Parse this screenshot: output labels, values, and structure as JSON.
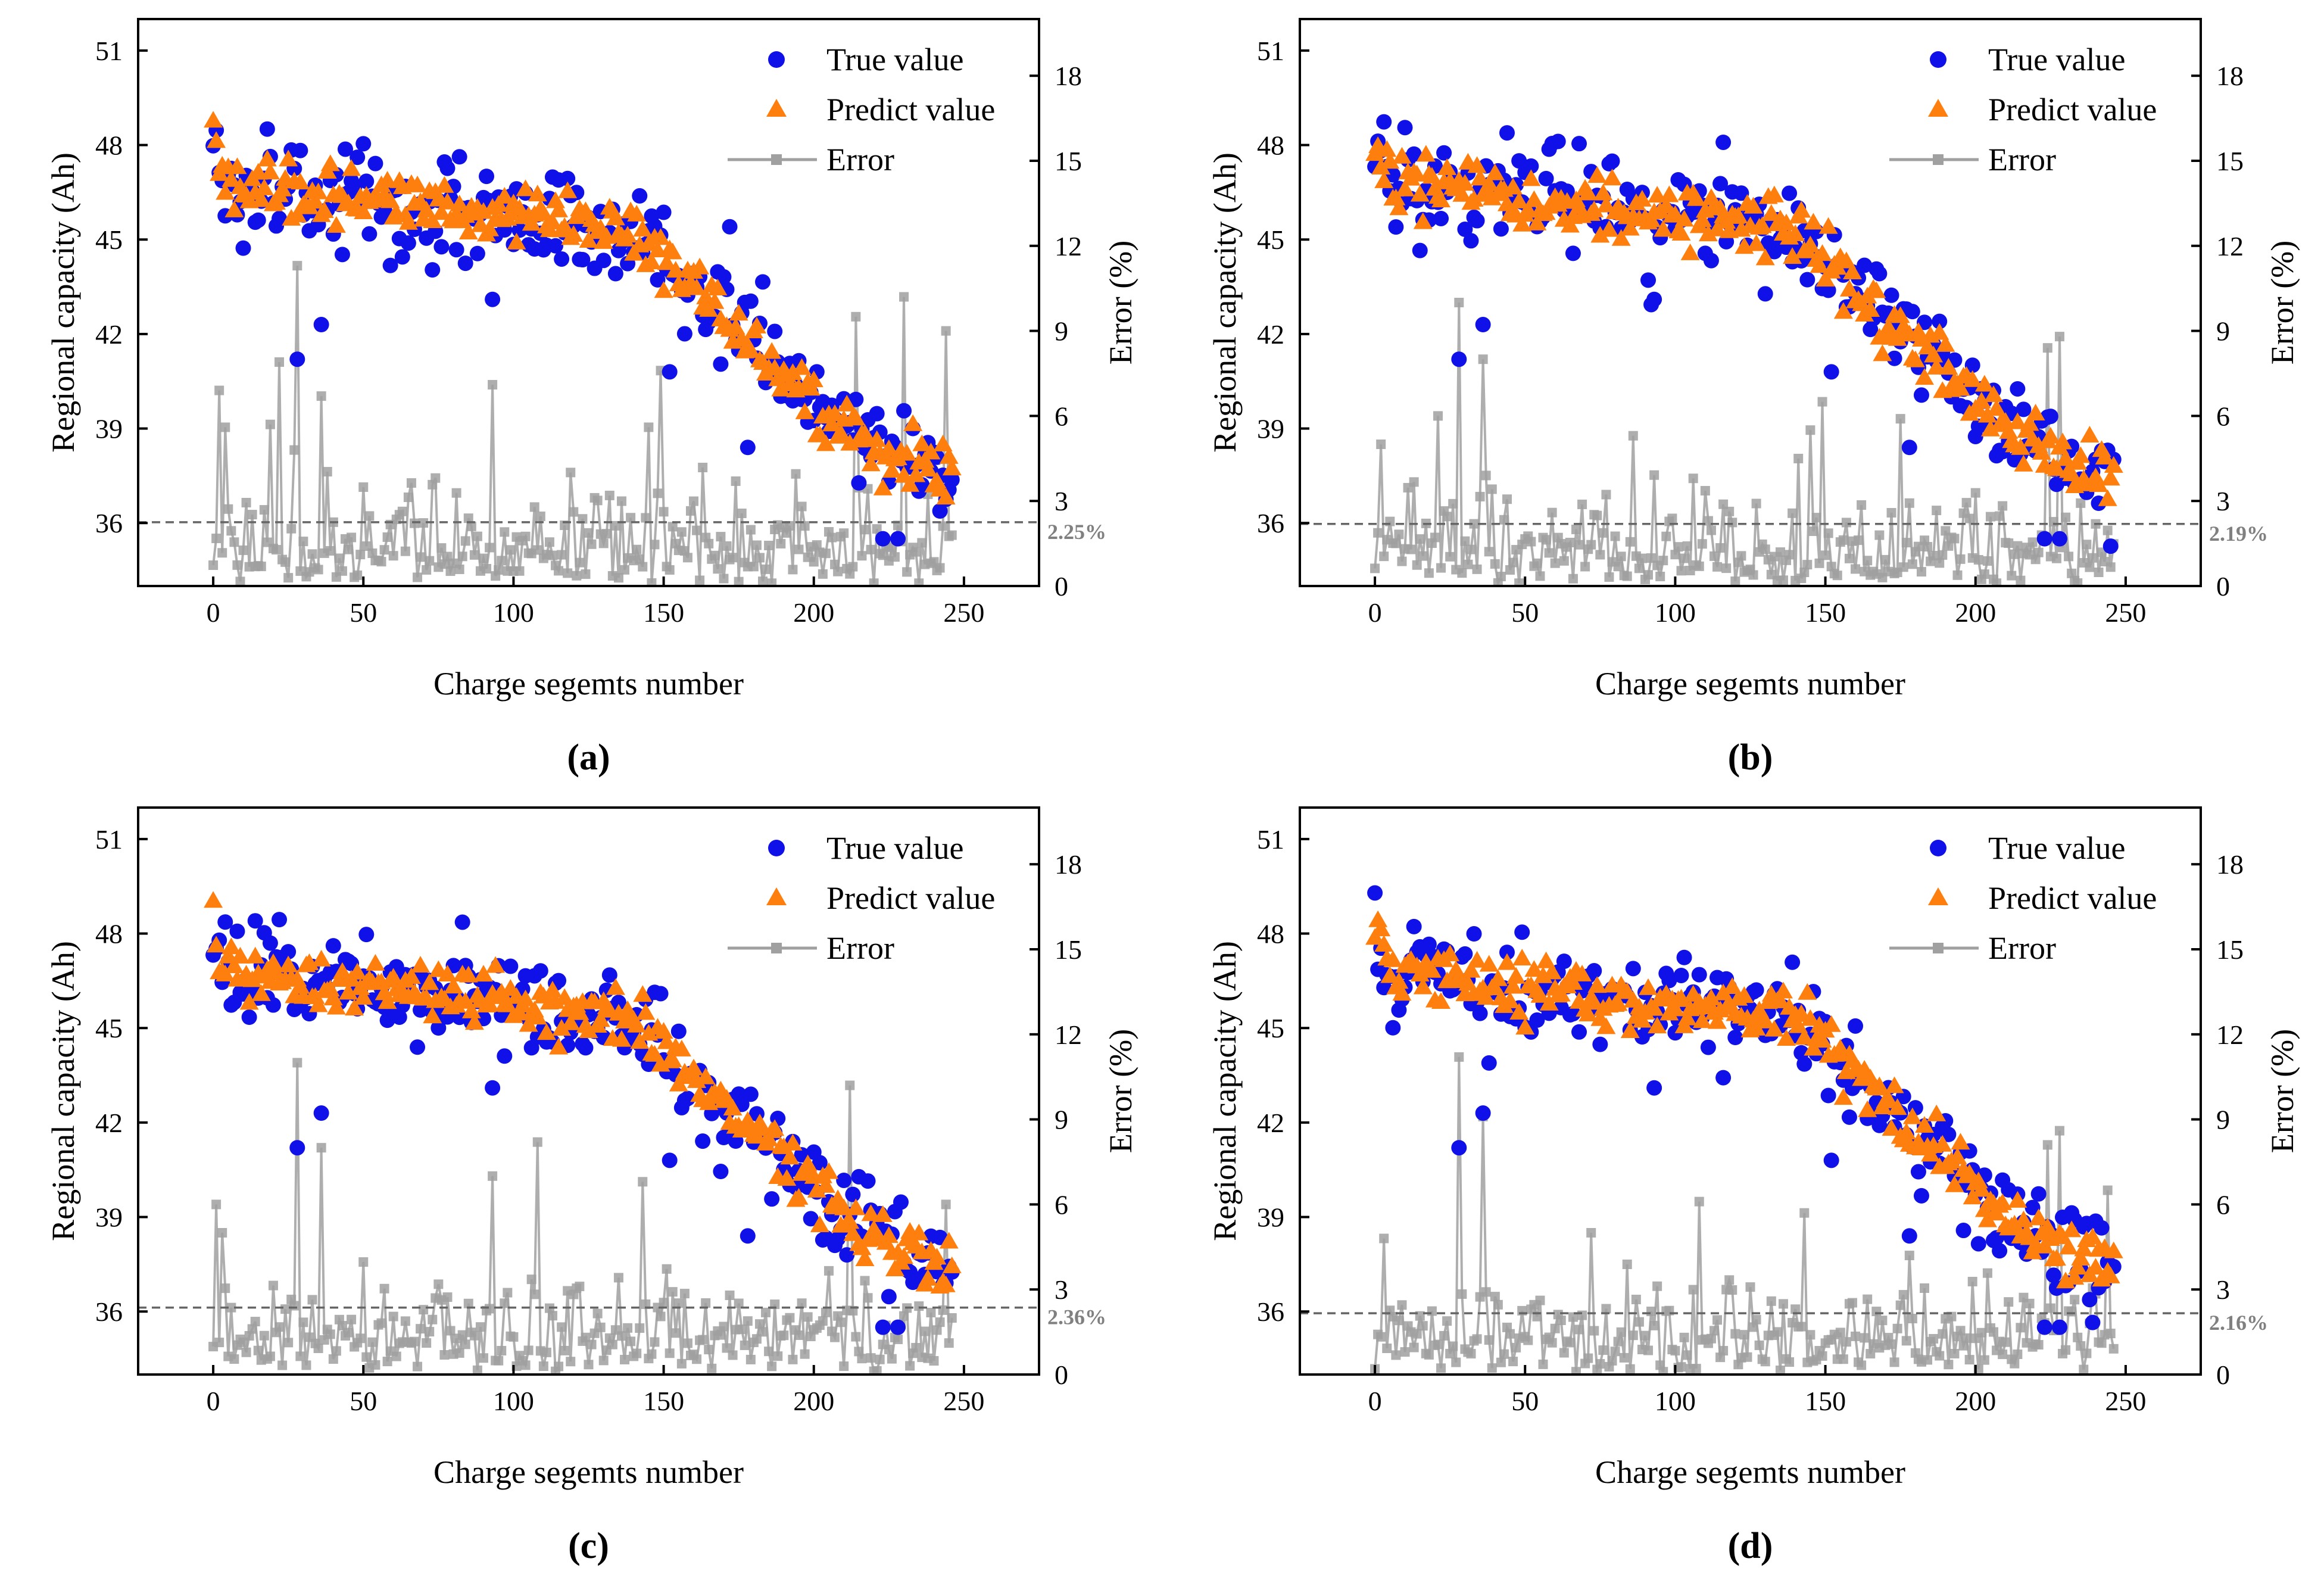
{
  "chart_data": [
    {
      "panel_label": "(a)",
      "type": "scatter",
      "xlabel": "Charge segemts number",
      "ylabel": "Regional capacity (Ah)",
      "y2label": "Error (%)",
      "xlim": [
        -25,
        275
      ],
      "ylim": [
        34,
        52
      ],
      "y2lim": [
        0,
        20
      ],
      "xticks": [
        "0",
        "50",
        "100",
        "150",
        "200",
        "250"
      ],
      "yticks": [
        "36",
        "39",
        "42",
        "45",
        "48",
        "51"
      ],
      "y2ticks": [
        "0",
        "3",
        "6",
        "9",
        "12",
        "15",
        "18"
      ],
      "legend": {
        "position": "top-right",
        "true": "True value",
        "predict": "Predict value",
        "error": "Error"
      },
      "mean_error_label": "2.25%",
      "mean_error": 2.25,
      "seed": 11,
      "true_anomalies": [
        {
          "x": 28,
          "y": 41.2
        },
        {
          "x": 36,
          "y": 42.3
        },
        {
          "x": 93,
          "y": 43.1
        },
        {
          "x": 152,
          "y": 40.8
        },
        {
          "x": 178,
          "y": 38.4
        },
        {
          "x": 223,
          "y": 35.5
        },
        {
          "x": 228,
          "y": 35.5
        }
      ],
      "error_spikes": [
        {
          "x": 2,
          "y": 6.9
        },
        {
          "x": 4,
          "y": 5.6
        },
        {
          "x": 19,
          "y": 5.7
        },
        {
          "x": 22,
          "y": 7.9
        },
        {
          "x": 28,
          "y": 11.3
        },
        {
          "x": 36,
          "y": 6.7
        },
        {
          "x": 93,
          "y": 7.1
        },
        {
          "x": 145,
          "y": 5.6
        },
        {
          "x": 149,
          "y": 7.6
        },
        {
          "x": 214,
          "y": 9.5
        },
        {
          "x": 230,
          "y": 10.2
        },
        {
          "x": 244,
          "y": 9.0
        }
      ]
    },
    {
      "panel_label": "(b)",
      "type": "scatter",
      "xlabel": "Charge segemts number",
      "ylabel": "Regional capacity (Ah)",
      "y2label": "Error (%)",
      "xlim": [
        -25,
        275
      ],
      "ylim": [
        34,
        52
      ],
      "y2lim": [
        0,
        20
      ],
      "xticks": [
        "0",
        "50",
        "100",
        "150",
        "200",
        "250"
      ],
      "yticks": [
        "36",
        "39",
        "42",
        "45",
        "48",
        "51"
      ],
      "y2ticks": [
        "0",
        "3",
        "6",
        "9",
        "12",
        "15",
        "18"
      ],
      "legend": {
        "position": "top-right",
        "true": "True value",
        "predict": "Predict value",
        "error": "Error"
      },
      "mean_error_label": "2.19%",
      "mean_error": 2.19,
      "seed": 23,
      "true_anomalies": [
        {
          "x": 28,
          "y": 41.2
        },
        {
          "x": 36,
          "y": 42.3
        },
        {
          "x": 93,
          "y": 43.1
        },
        {
          "x": 152,
          "y": 40.8
        },
        {
          "x": 178,
          "y": 38.4
        },
        {
          "x": 223,
          "y": 35.5
        },
        {
          "x": 228,
          "y": 35.5
        }
      ],
      "error_spikes": [
        {
          "x": 2,
          "y": 5.0
        },
        {
          "x": 21,
          "y": 6.0
        },
        {
          "x": 28,
          "y": 10.0
        },
        {
          "x": 36,
          "y": 8.0
        },
        {
          "x": 86,
          "y": 5.3
        },
        {
          "x": 145,
          "y": 5.5
        },
        {
          "x": 149,
          "y": 6.5
        },
        {
          "x": 175,
          "y": 5.9
        },
        {
          "x": 224,
          "y": 8.4
        },
        {
          "x": 228,
          "y": 8.8
        }
      ]
    },
    {
      "panel_label": "(c)",
      "type": "scatter",
      "xlabel": "Charge segemts number",
      "ylabel": "Regional capacity (Ah)",
      "y2label": "Error (%)",
      "xlim": [
        -25,
        275
      ],
      "ylim": [
        34,
        52
      ],
      "y2lim": [
        0,
        20
      ],
      "xticks": [
        "0",
        "50",
        "100",
        "150",
        "200",
        "250"
      ],
      "yticks": [
        "36",
        "39",
        "42",
        "45",
        "48",
        "51"
      ],
      "y2ticks": [
        "0",
        "3",
        "6",
        "9",
        "12",
        "15",
        "18"
      ],
      "legend": {
        "position": "top-right",
        "true": "True value",
        "predict": "Predict value",
        "error": "Error"
      },
      "mean_error_label": "2.36%",
      "mean_error": 2.36,
      "seed": 37,
      "true_anomalies": [
        {
          "x": 28,
          "y": 41.2
        },
        {
          "x": 36,
          "y": 42.3
        },
        {
          "x": 93,
          "y": 43.1
        },
        {
          "x": 152,
          "y": 40.8
        },
        {
          "x": 178,
          "y": 38.4
        },
        {
          "x": 223,
          "y": 35.5
        },
        {
          "x": 228,
          "y": 35.5
        }
      ],
      "error_spikes": [
        {
          "x": 1,
          "y": 6.0
        },
        {
          "x": 3,
          "y": 5.0
        },
        {
          "x": 28,
          "y": 11.0
        },
        {
          "x": 36,
          "y": 8.0
        },
        {
          "x": 93,
          "y": 7.0
        },
        {
          "x": 108,
          "y": 8.2
        },
        {
          "x": 143,
          "y": 6.8
        },
        {
          "x": 212,
          "y": 10.2
        },
        {
          "x": 244,
          "y": 6.0
        }
      ]
    },
    {
      "panel_label": "(d)",
      "type": "scatter",
      "xlabel": "Charge segemts number",
      "ylabel": "Regional capacity (Ah)",
      "y2label": "Error (%)",
      "xlim": [
        -25,
        275
      ],
      "ylim": [
        34,
        52
      ],
      "y2lim": [
        0,
        20
      ],
      "xticks": [
        "0",
        "50",
        "100",
        "150",
        "200",
        "250"
      ],
      "yticks": [
        "36",
        "39",
        "42",
        "45",
        "48",
        "51"
      ],
      "y2ticks": [
        "0",
        "3",
        "6",
        "9",
        "12",
        "15",
        "18"
      ],
      "legend": {
        "position": "top-right",
        "true": "True value",
        "predict": "Predict value",
        "error": "Error"
      },
      "mean_error_label": "2.16%",
      "mean_error": 2.16,
      "seed": 51,
      "true_anomalies": [
        {
          "x": 28,
          "y": 41.2
        },
        {
          "x": 36,
          "y": 42.3
        },
        {
          "x": 93,
          "y": 43.1
        },
        {
          "x": 152,
          "y": 40.8
        },
        {
          "x": 178,
          "y": 38.4
        },
        {
          "x": 223,
          "y": 35.5
        },
        {
          "x": 228,
          "y": 35.5
        }
      ],
      "error_spikes": [
        {
          "x": 3,
          "y": 4.8
        },
        {
          "x": 28,
          "y": 11.2
        },
        {
          "x": 36,
          "y": 9.1
        },
        {
          "x": 72,
          "y": 5.0
        },
        {
          "x": 108,
          "y": 6.1
        },
        {
          "x": 143,
          "y": 5.7
        },
        {
          "x": 178,
          "y": 4.2
        },
        {
          "x": 224,
          "y": 8.1
        },
        {
          "x": 228,
          "y": 8.6
        },
        {
          "x": 244,
          "y": 6.5
        }
      ]
    }
  ],
  "colors": {
    "true": "#1010e8",
    "predict": "#ff7f0e",
    "error": "#a0a0a0",
    "axis": "#000000",
    "dash": "#666666",
    "pct": "#808080"
  }
}
